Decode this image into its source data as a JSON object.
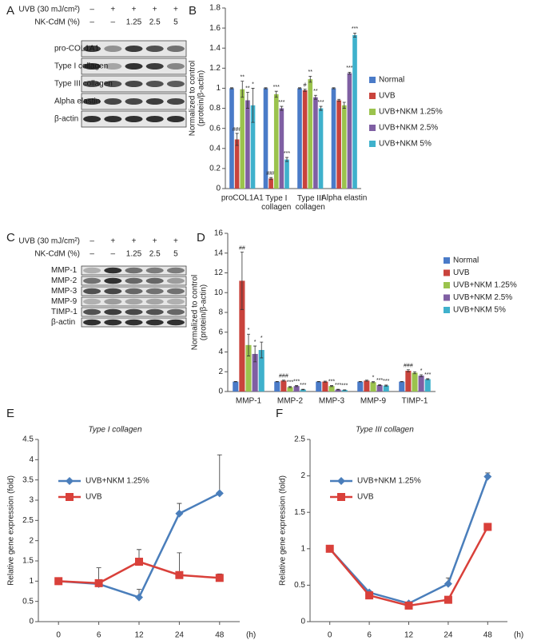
{
  "blots": [
    {
      "panel": "A",
      "header": [
        {
          "label": "UVB (30 mJ/cm²)",
          "lanes": [
            "–",
            "+",
            "+",
            "+",
            "+"
          ]
        },
        {
          "label": "NK-CdM (%)",
          "lanes": [
            "–",
            "–",
            "1.25",
            "2.5",
            "5"
          ]
        }
      ],
      "bands": [
        "pro-COL1A1",
        "Type I collagen",
        "Type III collagen",
        "Alpha elastin",
        "β-actin"
      ]
    },
    {
      "panel": "C",
      "header": [
        {
          "label": "UVB (30 mJ/cm²)",
          "lanes": [
            "–",
            "+",
            "+",
            "+",
            "+"
          ]
        },
        {
          "label": "NK-CdM (%)",
          "lanes": [
            "–",
            "–",
            "1.25",
            "2.5",
            "5"
          ]
        }
      ],
      "bands": [
        "MMP-1",
        "MMP-2",
        "MMP-3",
        "MMP-9",
        "TIMP-1",
        "β-actin"
      ]
    }
  ],
  "chart_data": [
    {
      "type": "bar",
      "panel": "B",
      "ylabel": "Normalized to control\n(protein/β-actin)",
      "categories": [
        "proCOL1A1",
        "Type I\ncollagen",
        "Type III\ncollagen",
        "Alpha elastin"
      ],
      "ylim": [
        0,
        1.8
      ],
      "yticks": [
        0,
        0.2,
        0.4,
        0.6,
        0.8,
        1,
        1.2,
        1.4,
        1.6,
        1.8
      ],
      "legend": "right",
      "series": [
        {
          "name": "Normal",
          "color": "#4a7bc8",
          "values": [
            1,
            1,
            1,
            1
          ],
          "errors": [
            0.005,
            0.005,
            0.005,
            0.005
          ],
          "annotations": [
            null,
            null,
            null,
            null
          ]
        },
        {
          "name": "UVB",
          "color": "#c9433c",
          "values": [
            0.49,
            0.1,
            0.98,
            0.88
          ],
          "errors": [
            0.06,
            0.01,
            0.01,
            0.01
          ],
          "annotations": [
            "###",
            "###",
            "#",
            null
          ]
        },
        {
          "name": "UVB+NKM 1.25%",
          "color": "#9bc34d",
          "values": [
            0.99,
            0.94,
            1.09,
            0.83
          ],
          "errors": [
            0.08,
            0.03,
            0.03,
            0.03
          ],
          "annotations": [
            "**",
            "***",
            "**",
            null
          ]
        },
        {
          "name": "UVB+NKM 2.5%",
          "color": "#7f5fa3",
          "values": [
            0.88,
            0.8,
            0.91,
            1.15
          ],
          "errors": [
            0.08,
            0.02,
            0.02,
            0.01
          ],
          "annotations": [
            "**",
            "***",
            "**",
            "***"
          ]
        },
        {
          "name": "UVB+NKM 5%",
          "color": "#3fb1cc",
          "values": [
            0.83,
            0.29,
            0.8,
            1.53
          ],
          "errors": [
            0.17,
            0.02,
            0.02,
            0.02
          ],
          "annotations": [
            "*",
            "***",
            "***",
            "***"
          ]
        }
      ]
    },
    {
      "type": "bar",
      "panel": "D",
      "ylabel": "Normalized to control\n(protein/β-actin)",
      "categories": [
        "MMP-1",
        "MMP-2",
        "MMP-3",
        "MMP-9",
        "TIMP-1"
      ],
      "ylim": [
        0,
        16
      ],
      "yticks": [
        0,
        2,
        4,
        6,
        8,
        10,
        12,
        14,
        16
      ],
      "legend": "right",
      "series": [
        {
          "name": "Normal",
          "color": "#4a7bc8",
          "values": [
            1,
            1,
            1,
            1,
            1
          ],
          "errors": [
            0.02,
            0.02,
            0.02,
            0.02,
            0.02
          ],
          "annotations": [
            null,
            null,
            null,
            null,
            null
          ]
        },
        {
          "name": "UVB",
          "color": "#c9433c",
          "values": [
            11.2,
            1.1,
            1,
            1.1,
            2.1
          ],
          "errors": [
            2.9,
            0.05,
            0.05,
            0.05,
            0.1
          ],
          "annotations": [
            "##",
            "###",
            null,
            null,
            "###"
          ]
        },
        {
          "name": "UVB+NKM 1.25%",
          "color": "#9bc34d",
          "values": [
            4.7,
            0.45,
            0.55,
            0.95,
            1.9
          ],
          "errors": [
            1.1,
            0.05,
            0.05,
            0.05,
            0.1
          ],
          "annotations": [
            "*",
            "***",
            "***",
            "*",
            null
          ]
        },
        {
          "name": "UVB+NKM 2.5%",
          "color": "#7f5fa3",
          "values": [
            3.8,
            0.55,
            0.2,
            0.65,
            1.6
          ],
          "errors": [
            0.8,
            0.05,
            0.03,
            0.05,
            0.1
          ],
          "annotations": [
            "*",
            "***",
            "***",
            "***",
            "*"
          ]
        },
        {
          "name": "UVB+NKM 5%",
          "color": "#3fb1cc",
          "values": [
            4.2,
            0.2,
            0.15,
            0.6,
            1.25
          ],
          "errors": [
            0.8,
            0.03,
            0.02,
            0.05,
            0.05
          ],
          "annotations": [
            "*",
            "***",
            "***",
            "***",
            "***"
          ]
        }
      ]
    },
    {
      "type": "line",
      "panel": "E",
      "title": "Type I collagen",
      "ylabel": "Relative gene expression (fold)",
      "xlabel": "(h)",
      "categories": [
        "0",
        "6",
        "12",
        "24",
        "48"
      ],
      "ylim": [
        0,
        4.5
      ],
      "yticks": [
        0,
        0.5,
        1,
        1.5,
        2,
        2.5,
        3,
        3.5,
        4,
        4.5
      ],
      "legend": "upper left",
      "series": [
        {
          "name": "UVB+NKM 1.25%",
          "color": "#4a7ebb",
          "marker": "diamond",
          "values": [
            1,
            0.93,
            0.6,
            2.67,
            3.17
          ],
          "errors": [
            0,
            0.4,
            0.2,
            0.25,
            0.95
          ]
        },
        {
          "name": "UVB",
          "color": "#d9403a",
          "marker": "square",
          "values": [
            1,
            0.95,
            1.48,
            1.15,
            1.08
          ],
          "errors": [
            0,
            0.05,
            0.3,
            0.55,
            0.1
          ]
        }
      ]
    },
    {
      "type": "line",
      "panel": "F",
      "title": "Type III collagen",
      "ylabel": "Relative gene expression (fold)",
      "xlabel": "(h)",
      "categories": [
        "0",
        "6",
        "12",
        "24",
        "48"
      ],
      "ylim": [
        0,
        2.5
      ],
      "yticks": [
        0,
        0.5,
        1,
        1.5,
        2,
        2.5
      ],
      "legend": "upper left",
      "series": [
        {
          "name": "UVB+NKM 1.25%",
          "color": "#4a7ebb",
          "marker": "diamond",
          "values": [
            1,
            0.4,
            0.25,
            0.52,
            1.99
          ],
          "errors": [
            0,
            0.02,
            0.02,
            0.08,
            0.05
          ]
        },
        {
          "name": "UVB",
          "color": "#d9403a",
          "marker": "square",
          "values": [
            1,
            0.36,
            0.22,
            0.3,
            1.3
          ],
          "errors": [
            0,
            0.02,
            0.02,
            0.02,
            0.02
          ]
        }
      ]
    }
  ]
}
